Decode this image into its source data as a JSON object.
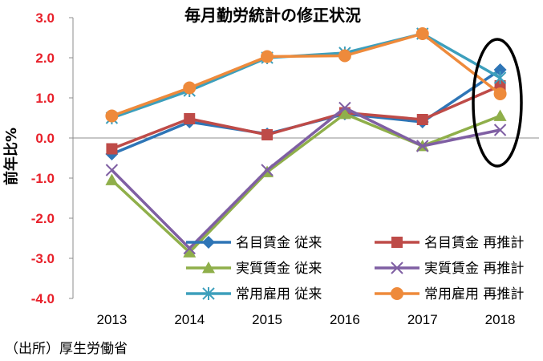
{
  "chart_data": {
    "type": "line",
    "title": "毎月勤労統計の修正状況",
    "ylabel": "前年比%",
    "xlabel": "",
    "categories": [
      "2013",
      "2014",
      "2015",
      "2016",
      "2017",
      "2018"
    ],
    "ylim": [
      -4.0,
      3.0
    ],
    "yticks": [
      "3.0",
      "2.0",
      "1.0",
      "0.0",
      "-1.0",
      "-2.0",
      "-3.0",
      "-4.0"
    ],
    "grid": false,
    "legend_position": "bottom-inside",
    "series": [
      {
        "name": "名目賃金 従来",
        "marker": "diamond",
        "color": "#2e75b6",
        "values": [
          -0.4,
          0.4,
          0.1,
          0.6,
          0.4,
          1.7
        ]
      },
      {
        "name": "名目賃金 再推計",
        "marker": "square",
        "color": "#be4b48",
        "values": [
          -0.27,
          0.48,
          0.08,
          0.63,
          0.46,
          1.3
        ]
      },
      {
        "name": "実質賃金 従来",
        "marker": "triangle",
        "color": "#8faf4a",
        "values": [
          -1.05,
          -2.85,
          -0.85,
          0.6,
          -0.2,
          0.55
        ]
      },
      {
        "name": "実質賃金 再推計",
        "marker": "x",
        "color": "#7f5fa3",
        "values": [
          -0.8,
          -2.75,
          -0.8,
          0.75,
          -0.2,
          0.2
        ]
      },
      {
        "name": "常用雇用 従来",
        "marker": "star",
        "color": "#3d9fbc",
        "values": [
          0.5,
          1.18,
          2.0,
          2.12,
          2.6,
          1.5
        ]
      },
      {
        "name": "常用雇用 再推計",
        "marker": "circle",
        "color": "#ee8a3b",
        "values": [
          0.55,
          1.25,
          2.03,
          2.05,
          2.6,
          1.1
        ]
      }
    ],
    "annotation": "ellipse-highlight-2018"
  },
  "source_note": "（出所）厚生労働省"
}
